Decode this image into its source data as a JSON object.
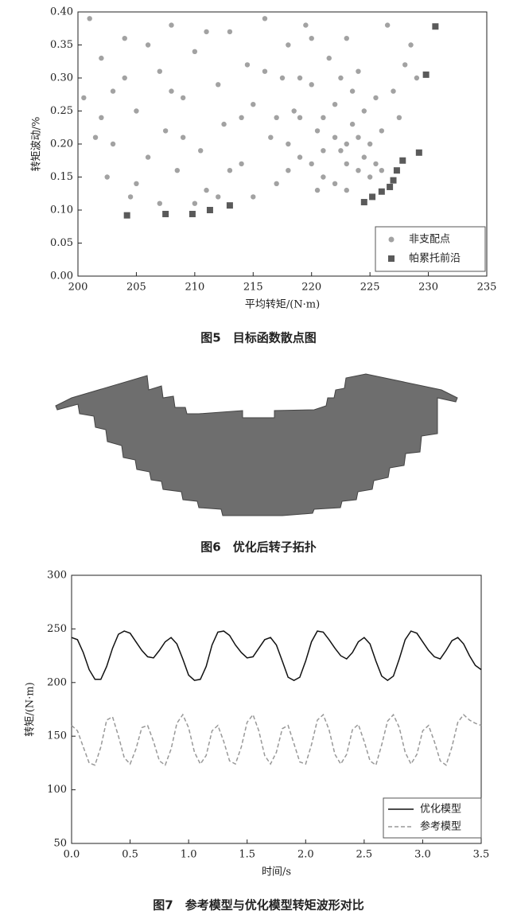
{
  "chart_data": [
    {
      "type": "scatter",
      "caption": "图5　目标函数散点图",
      "xlabel": "平均转矩/(N·m)",
      "ylabel": "转矩波动/%",
      "xlim": [
        200,
        235
      ],
      "xticks": [
        200,
        205,
        210,
        215,
        220,
        225,
        230,
        235
      ],
      "ylim": [
        0,
        0.4
      ],
      "yticks": [
        {
          "value": 0,
          "label": "0.00"
        },
        {
          "value": 0.05,
          "label": "0.05"
        },
        {
          "value": 0.1,
          "label": "0.10"
        },
        {
          "value": 0.15,
          "label": "0.15"
        },
        {
          "value": 0.2,
          "label": "0.20"
        },
        {
          "value": 0.25,
          "label": "0.25"
        },
        {
          "value": 0.3,
          "label": "0.30"
        },
        {
          "value": 0.35,
          "label": "0.35"
        },
        {
          "value": 0.4,
          "label": "0.40"
        }
      ],
      "legend": "lower right",
      "series": [
        {
          "name": "非支配点",
          "color": "#555555",
          "marker": "circle",
          "x": [
            201,
            202,
            203,
            201.5,
            202.5,
            204,
            205,
            206,
            204.5,
            207,
            208,
            207.5,
            208.5,
            209,
            210,
            210.5,
            211,
            212,
            213,
            212.5,
            214,
            214.5,
            215,
            216,
            216.5,
            217,
            217.5,
            218,
            218.5,
            219,
            219.5,
            220,
            220.5,
            221,
            221.5,
            222,
            222.5,
            223,
            223.5,
            224,
            224.5,
            225,
            225.5,
            226,
            223,
            222,
            221,
            224,
            225,
            220,
            219,
            218,
            222,
            223,
            226,
            227,
            228,
            229,
            227.5,
            228.5,
            226.5,
            204,
            203,
            206,
            209,
            211,
            213,
            215,
            216,
            217,
            218,
            219,
            220,
            221,
            222.5,
            223.5,
            224.5,
            205,
            207,
            210,
            212,
            214,
            200.5,
            202,
            208,
            220.5,
            224,
            225.5,
            223
          ],
          "y": [
            0.39,
            0.33,
            0.28,
            0.21,
            0.15,
            0.36,
            0.25,
            0.18,
            0.12,
            0.31,
            0.38,
            0.22,
            0.16,
            0.27,
            0.34,
            0.19,
            0.13,
            0.29,
            0.37,
            0.23,
            0.17,
            0.32,
            0.26,
            0.39,
            0.21,
            0.14,
            0.3,
            0.35,
            0.25,
            0.18,
            0.38,
            0.29,
            0.22,
            0.15,
            0.33,
            0.26,
            0.19,
            0.17,
            0.23,
            0.16,
            0.18,
            0.15,
            0.17,
            0.16,
            0.2,
            0.21,
            0.24,
            0.21,
            0.2,
            0.17,
            0.24,
            0.2,
            0.14,
            0.13,
            0.22,
            0.28,
            0.32,
            0.3,
            0.24,
            0.35,
            0.38,
            0.3,
            0.2,
            0.35,
            0.21,
            0.37,
            0.16,
            0.12,
            0.31,
            0.24,
            0.16,
            0.3,
            0.36,
            0.19,
            0.3,
            0.28,
            0.25,
            0.14,
            0.11,
            0.11,
            0.12,
            0.24,
            0.27,
            0.24,
            0.28,
            0.13,
            0.31,
            0.27,
            0.36
          ]
        },
        {
          "name": "帕累托前沿",
          "color": "#5a5a5a",
          "marker": "square",
          "x": [
            204.2,
            207.5,
            209.8,
            211.3,
            213,
            224.5,
            225.2,
            226,
            226.7,
            227,
            227.3,
            227.8,
            229.2,
            229.8,
            230.6
          ],
          "y": [
            0.092,
            0.094,
            0.094,
            0.1,
            0.107,
            0.112,
            0.12,
            0.128,
            0.135,
            0.145,
            0.16,
            0.175,
            0.187,
            0.305,
            0.378
          ]
        }
      ]
    },
    {
      "type": "diagram",
      "caption": "图6　优化后转子拓扑"
    },
    {
      "type": "line",
      "caption": "图7　参考模型与优化模型转矩波形对比",
      "xlabel": "时间/s",
      "ylabel": "转矩/(N·m)",
      "xlim": [
        0,
        3.5
      ],
      "xticks": [
        {
          "value": 0,
          "label": "0.0"
        },
        {
          "value": 0.5,
          "label": "0.5"
        },
        {
          "value": 1,
          "label": "1.0"
        },
        {
          "value": 1.5,
          "label": "1.5"
        },
        {
          "value": 2,
          "label": "2.0"
        },
        {
          "value": 2.5,
          "label": "2.5"
        },
        {
          "value": 3,
          "label": "3.0"
        },
        {
          "value": 3.5,
          "label": "3.5"
        }
      ],
      "ylim": [
        50,
        300
      ],
      "yticks": [
        50,
        100,
        150,
        200,
        250,
        300
      ],
      "legend": "lower right",
      "x": [
        0,
        0.05,
        0.1,
        0.15,
        0.2,
        0.25,
        0.3,
        0.35,
        0.4,
        0.45,
        0.5,
        0.55,
        0.6,
        0.65,
        0.7,
        0.75,
        0.8,
        0.85,
        0.9,
        0.95,
        1,
        1.05,
        1.1,
        1.15,
        1.2,
        1.25,
        1.3,
        1.35,
        1.4,
        1.45,
        1.5,
        1.55,
        1.6,
        1.65,
        1.7,
        1.75,
        1.8,
        1.85,
        1.9,
        1.95,
        2,
        2.05,
        2.1,
        2.15,
        2.2,
        2.25,
        2.3,
        2.35,
        2.4,
        2.45,
        2.5,
        2.55,
        2.6,
        2.65,
        2.7,
        2.75,
        2.8,
        2.85,
        2.9,
        2.95,
        3,
        3.05,
        3.1,
        3.15,
        3.2,
        3.25,
        3.3,
        3.35,
        3.4,
        3.45,
        3.5
      ],
      "series": [
        {
          "name": "优化模型",
          "color": "#111111",
          "dashed": false,
          "values": [
            242,
            240,
            228,
            212,
            203,
            203,
            215,
            232,
            245,
            248,
            246,
            238,
            230,
            224,
            223,
            230,
            238,
            242,
            236,
            222,
            207,
            202,
            203,
            215,
            235,
            247,
            248,
            244,
            235,
            228,
            223,
            224,
            232,
            240,
            242,
            235,
            220,
            205,
            202,
            205,
            220,
            238,
            248,
            247,
            240,
            232,
            225,
            222,
            228,
            238,
            242,
            236,
            220,
            206,
            202,
            206,
            222,
            240,
            248,
            246,
            238,
            230,
            224,
            222,
            230,
            239,
            242,
            236,
            225,
            216,
            212
          ]
        },
        {
          "name": "参考模型",
          "color": "#999999",
          "dashed": true,
          "values": [
            160,
            155,
            140,
            125,
            123,
            140,
            165,
            168,
            150,
            130,
            124,
            138,
            158,
            160,
            145,
            127,
            123,
            138,
            162,
            170,
            158,
            135,
            124,
            132,
            155,
            160,
            145,
            127,
            124,
            140,
            163,
            170,
            155,
            132,
            124,
            135,
            157,
            160,
            143,
            126,
            124,
            142,
            165,
            170,
            156,
            133,
            124,
            133,
            156,
            161,
            145,
            127,
            123,
            142,
            164,
            170,
            158,
            135,
            124,
            133,
            155,
            160,
            145,
            127,
            123,
            140,
            163,
            170,
            165,
            162,
            160
          ]
        }
      ]
    }
  ]
}
